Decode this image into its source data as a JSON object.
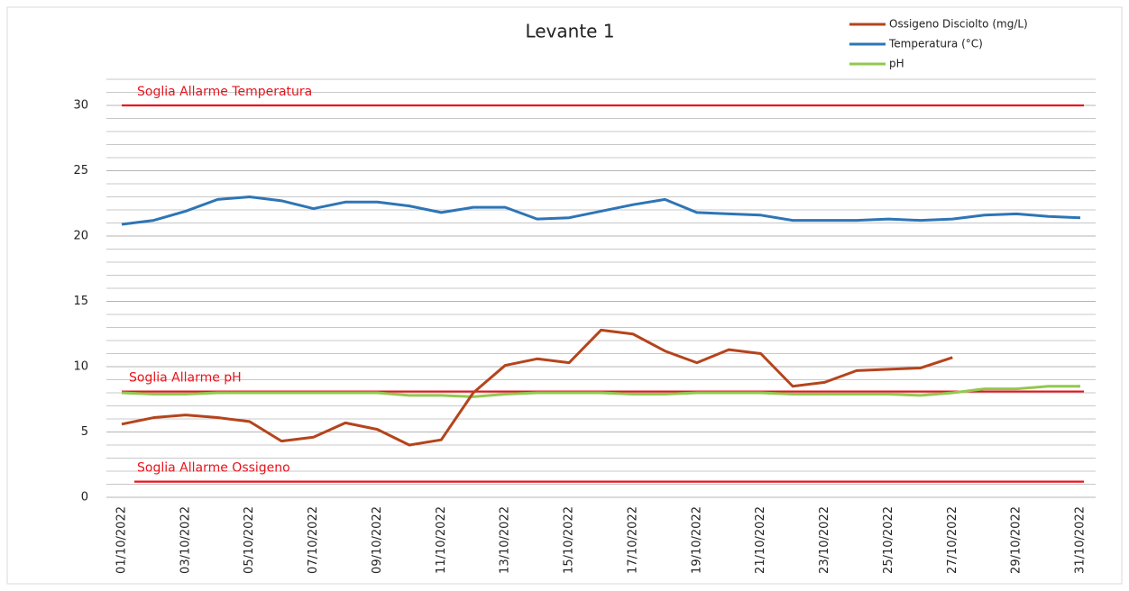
{
  "chart_data": {
    "type": "line",
    "title": "Levante 1",
    "categories": [
      "01/10/2022",
      null,
      "03/10/2022",
      null,
      "05/10/2022",
      null,
      "07/10/2022",
      null,
      "09/10/2022",
      null,
      "11/10/2022",
      null,
      "13/10/2022",
      null,
      "15/10/2022",
      null,
      "17/10/2022",
      null,
      "19/10/2022",
      null,
      "21/10/2022",
      null,
      "23/10/2022",
      null,
      "25/10/2022",
      null,
      "27/10/2022",
      null,
      "29/10/2022",
      null,
      "31/10/2022"
    ],
    "series": [
      {
        "name": "Ossigeno Disciolto (mg/L)",
        "color": "#b5441c",
        "values": [
          5.6,
          6.1,
          6.3,
          6.1,
          5.8,
          4.3,
          4.6,
          5.7,
          5.2,
          4.0,
          4.4,
          8.0,
          10.1,
          10.6,
          10.3,
          12.8,
          12.5,
          11.2,
          10.3,
          11.3,
          11.0,
          8.5,
          8.8,
          9.7,
          9.8,
          9.9,
          10.7,
          null,
          null,
          null,
          null
        ]
      },
      {
        "name": "Temperatura (°C)",
        "color": "#2e75b6",
        "values": [
          20.9,
          21.2,
          21.9,
          22.8,
          23.0,
          22.7,
          22.1,
          22.6,
          22.6,
          22.3,
          21.8,
          22.2,
          22.2,
          21.3,
          21.4,
          21.9,
          22.4,
          22.8,
          21.8,
          21.7,
          21.6,
          21.2,
          21.2,
          21.2,
          21.3,
          21.2,
          21.3,
          21.6,
          21.7,
          21.5,
          21.4
        ]
      },
      {
        "name": "pH",
        "color": "#92c84f",
        "values": [
          8.0,
          7.9,
          7.9,
          8.0,
          8.0,
          8.0,
          8.0,
          8.0,
          8.0,
          7.8,
          7.8,
          7.7,
          7.9,
          8.0,
          8.0,
          8.0,
          7.9,
          7.9,
          8.0,
          8.0,
          8.0,
          7.9,
          7.9,
          7.9,
          7.9,
          7.8,
          8.0,
          8.3,
          8.3,
          8.5,
          8.5
        ]
      }
    ],
    "thresholds": [
      {
        "label": "Soglia Allarme Temperatura",
        "value": 30,
        "color": "#e8141c"
      },
      {
        "label": "Soglia  Allarme pH",
        "value": 8.1,
        "color": "#e8141c"
      },
      {
        "label": "Soglia  Allarme Ossigeno",
        "value": 1.2,
        "color": "#e8141c"
      }
    ],
    "ylim": [
      0,
      32
    ],
    "yticks": [
      0,
      5,
      10,
      15,
      20,
      25,
      30
    ],
    "minor_yticks": [
      1,
      2,
      3,
      4,
      6,
      7,
      8,
      9,
      11,
      12,
      13,
      14,
      16,
      17,
      18,
      19,
      21,
      22,
      23,
      24,
      26,
      27,
      28,
      29,
      31,
      32
    ],
    "grid": true,
    "legend": "top-right"
  }
}
